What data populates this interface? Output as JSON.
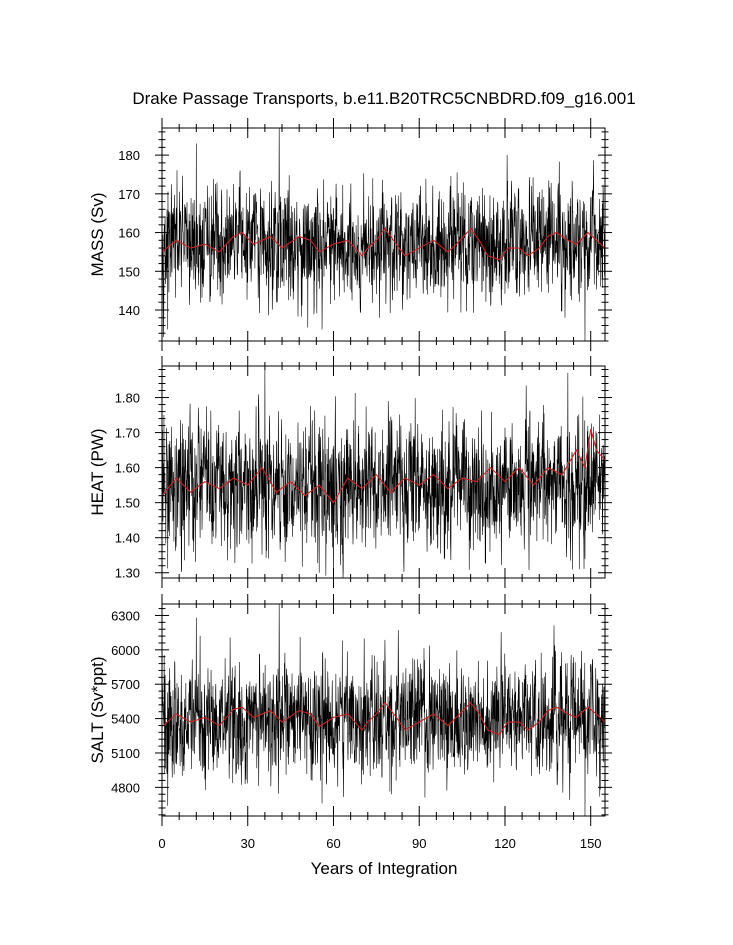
{
  "figure": {
    "title": "Drake Passage Transports, b.e11.B20TRC5CNBDRD.f09_g16.001",
    "xlabel": "Years of Integration"
  },
  "colors": {
    "raw": "#000000",
    "smooth": "#cc2222",
    "frame": "#000000"
  },
  "chart_data": [
    {
      "type": "line",
      "ylabel": "MASS (Sv)",
      "xlim": [
        0,
        155
      ],
      "ylim": [
        132,
        187
      ],
      "xticks": [
        0,
        30,
        60,
        90,
        120,
        150
      ],
      "xtick_labels": [
        "0",
        "30",
        "60",
        "90",
        "120",
        "150"
      ],
      "yticks": [
        140,
        150,
        160,
        170,
        180
      ],
      "ytick_labels": [
        "140",
        "150",
        "160",
        "170",
        "180"
      ],
      "grid": false,
      "series": [
        {
          "style": "monthly",
          "mean": 157,
          "spread": 6.5,
          "extremes": [
            [
              12,
              183
            ],
            [
              41,
              187
            ],
            [
              148,
              132
            ],
            [
              2,
              135
            ],
            [
              56,
              135
            ]
          ]
        },
        {
          "style": "annual",
          "x": [
            0,
            5,
            10,
            15,
            20,
            25,
            28,
            32,
            38,
            42,
            48,
            52,
            55,
            60,
            65,
            70,
            72,
            75,
            78,
            82,
            85,
            90,
            95,
            100,
            103,
            108,
            111,
            114,
            118,
            121,
            125,
            128,
            132,
            135,
            138,
            142,
            145,
            149,
            152,
            155
          ],
          "y": [
            155,
            158,
            156,
            157,
            155,
            159,
            160,
            157,
            159,
            156,
            159,
            158,
            155,
            157,
            158,
            154,
            156,
            158,
            161,
            157,
            154,
            156,
            158,
            155,
            157,
            161,
            158,
            154,
            153,
            156,
            156,
            154,
            156,
            159,
            160,
            158,
            157,
            160,
            158,
            156
          ]
        }
      ]
    },
    {
      "type": "line",
      "ylabel": "HEAT (PW)",
      "xlim": [
        0,
        155
      ],
      "ylim": [
        1.285,
        1.89
      ],
      "xticks": [
        0,
        30,
        60,
        90,
        120,
        150
      ],
      "xtick_labels": [
        "0",
        "30",
        "60",
        "90",
        "120",
        "150"
      ],
      "yticks": [
        1.3,
        1.4,
        1.5,
        1.6,
        1.7,
        1.8
      ],
      "ytick_labels": [
        "1.30",
        "1.40",
        "1.50",
        "1.60",
        "1.70",
        "1.80"
      ],
      "grid": false,
      "series": [
        {
          "style": "monthly",
          "mean": 1.555,
          "spread": 0.085,
          "extremes": [
            [
              36,
              1.885
            ],
            [
              55,
              1.3
            ],
            [
              60,
              1.285
            ],
            [
              142,
              1.87
            ],
            [
              148,
              1.34
            ]
          ]
        },
        {
          "style": "annual",
          "x": [
            0,
            5,
            10,
            15,
            20,
            25,
            30,
            35,
            40,
            45,
            50,
            55,
            60,
            65,
            70,
            75,
            80,
            85,
            90,
            95,
            100,
            105,
            110,
            115,
            120,
            125,
            130,
            135,
            140,
            145,
            148,
            150,
            152,
            155
          ],
          "y": [
            1.52,
            1.57,
            1.53,
            1.56,
            1.54,
            1.57,
            1.55,
            1.6,
            1.53,
            1.56,
            1.52,
            1.55,
            1.5,
            1.57,
            1.54,
            1.58,
            1.53,
            1.57,
            1.55,
            1.58,
            1.54,
            1.57,
            1.56,
            1.6,
            1.56,
            1.6,
            1.55,
            1.6,
            1.58,
            1.65,
            1.6,
            1.71,
            1.65,
            1.62
          ]
        }
      ]
    },
    {
      "type": "line",
      "ylabel": "SALT (Sv*ppt)",
      "xlim": [
        0,
        155
      ],
      "ylim": [
        4550,
        6400
      ],
      "xticks": [
        0,
        30,
        60,
        90,
        120,
        150
      ],
      "xtick_labels": [
        "0",
        "30",
        "60",
        "90",
        "120",
        "150"
      ],
      "yticks": [
        4800,
        5100,
        5400,
        5700,
        6000,
        6300
      ],
      "ytick_labels": [
        "4800",
        "5100",
        "5400",
        "5700",
        "6000",
        "6300"
      ],
      "grid": false,
      "series": [
        {
          "style": "monthly",
          "mean": 5400,
          "spread": 220,
          "extremes": [
            [
              12,
              6280
            ],
            [
              41,
              6400
            ],
            [
              148,
              4550
            ],
            [
              2,
              4640
            ],
            [
              56,
              4660
            ]
          ]
        },
        {
          "style": "annual",
          "x": [
            0,
            5,
            10,
            15,
            20,
            25,
            28,
            32,
            38,
            42,
            48,
            52,
            55,
            60,
            65,
            70,
            72,
            75,
            78,
            82,
            85,
            90,
            95,
            100,
            103,
            108,
            111,
            114,
            118,
            121,
            125,
            128,
            132,
            135,
            138,
            142,
            145,
            149,
            152,
            155
          ],
          "y": [
            5330,
            5440,
            5370,
            5410,
            5340,
            5480,
            5500,
            5410,
            5470,
            5370,
            5470,
            5440,
            5330,
            5410,
            5440,
            5300,
            5370,
            5440,
            5540,
            5410,
            5300,
            5370,
            5440,
            5340,
            5410,
            5540,
            5440,
            5300,
            5260,
            5370,
            5370,
            5300,
            5370,
            5470,
            5500,
            5440,
            5410,
            5500,
            5440,
            5370
          ]
        }
      ]
    }
  ]
}
